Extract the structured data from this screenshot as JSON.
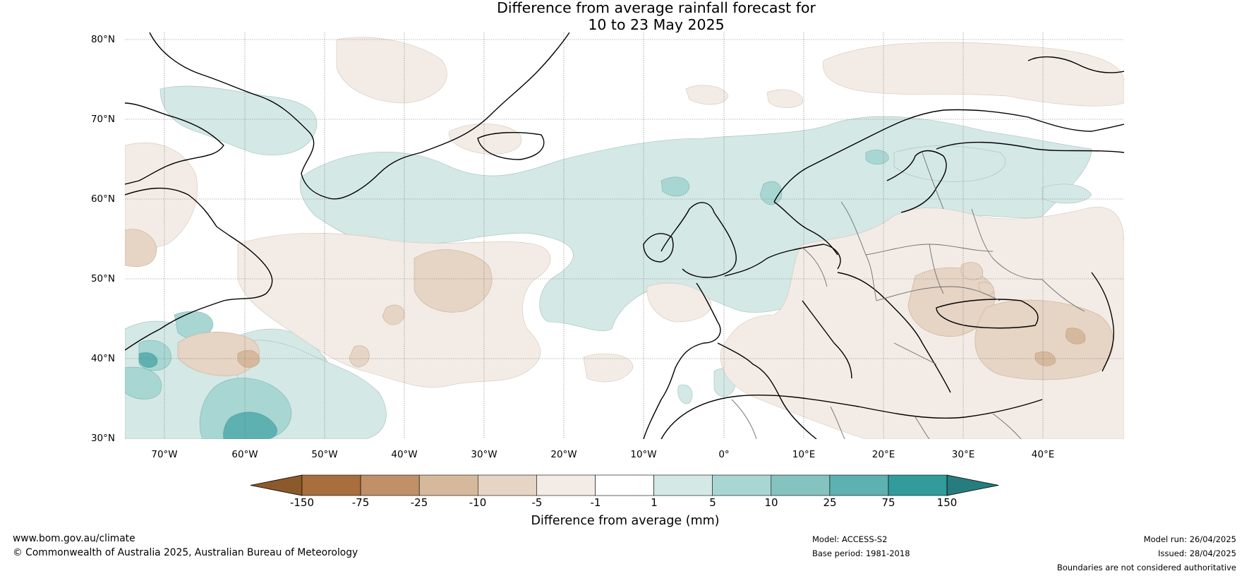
{
  "title": {
    "line1": "Difference from average rainfall forecast for",
    "line2": "10 to 23 May 2025"
  },
  "map": {
    "projection": "equirectangular",
    "lon_range": [
      -75,
      50
    ],
    "lat_range": [
      30,
      81
    ],
    "lat_ticks": [
      "80°N",
      "70°N",
      "60°N",
      "50°N",
      "40°N",
      "30°N"
    ],
    "lon_ticks": [
      "70°W",
      "60°W",
      "50°W",
      "40°W",
      "30°W",
      "20°W",
      "10°W",
      "0°",
      "10°E",
      "20°E",
      "30°E",
      "40°E"
    ],
    "gridlines": true
  },
  "colorbar": {
    "label": "Difference from average (mm)",
    "ticks": [
      "-150",
      "-75",
      "-25",
      "-10",
      "-5",
      "-1",
      "1",
      "5",
      "10",
      "25",
      "75",
      "150"
    ],
    "colors": [
      "#8c5a2a",
      "#a86e3d",
      "#c09068",
      "#d6b99c",
      "#e6d4c4",
      "#f3ece6",
      "#ffffff",
      "#d4e8e6",
      "#a8d6d3",
      "#85c3c1",
      "#5db1b0",
      "#319c9b",
      "#277d7d"
    ],
    "extend": "both"
  },
  "footer": {
    "website": "www.bom.gov.au/climate",
    "copyright": "© Commonwealth of Australia 2025, Australian Bureau of Meteorology",
    "model": "Model: ACCESS-S2",
    "base_period": "Base period: 1981-2018",
    "model_run": "Model run: 26/04/2025",
    "issued": "Issued: 28/04/2025",
    "disclaimer": "Boundaries are not considered authoritative"
  }
}
